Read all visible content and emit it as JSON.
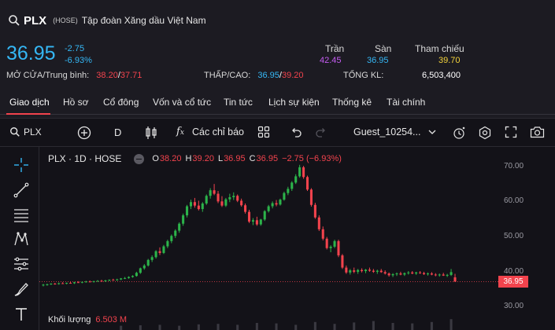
{
  "header": {
    "ticker": "PLX",
    "exchange": "(HOSE)",
    "company_name": "Tập đoàn Xăng dầu Việt Nam",
    "price": "36.95",
    "change": "-2.75",
    "change_pct": "-6.93%",
    "open_avg_label": "MỞ CỬA/Trung bình:",
    "open_value": "38.20",
    "avg_value": "37.71",
    "slash": "/",
    "lowhigh_label": "THẤP/CAO:",
    "low_value": "36.95",
    "high_value": "39.20",
    "volume_label": "TỔNG KL:",
    "volume_value": "6,503,400",
    "ceiling_label": "Trần",
    "ceiling_value": "42.45",
    "floor_label": "Sàn",
    "floor_value": "36.95",
    "reference_label": "Tham chiếu",
    "reference_value": "39.70"
  },
  "tabs": [
    {
      "label": "Giao dịch",
      "active": true
    },
    {
      "label": "Hồ sơ"
    },
    {
      "label": "Cổ đông"
    },
    {
      "label": "Vốn và cổ tức"
    },
    {
      "label": "Tin tức"
    },
    {
      "label": "Lịch sự kiện"
    },
    {
      "label": "Thống kê"
    },
    {
      "label": "Tài chính"
    }
  ],
  "toolbar": {
    "symbol": "PLX",
    "interval": "D",
    "indicators_label": "Các chỉ báo",
    "layout_name": "Guest_10254...",
    "icons": [
      "search-icon",
      "add-compare-icon",
      "candles-icon",
      "fx-icon",
      "templates-icon",
      "undo-icon",
      "redo-icon",
      "chevron-down-icon",
      "alert-icon",
      "settings-icon",
      "fullscreen-icon",
      "camera-icon"
    ]
  },
  "sidebar_icons": [
    "crosshair-icon",
    "trendline-icon",
    "fib-icon",
    "pattern-icon",
    "projection-icon",
    "brush-icon",
    "text-icon"
  ],
  "legend": {
    "title": "PLX · 1D · HOSE",
    "o_label": "O",
    "o_value": "38.20",
    "h_label": "H",
    "h_value": "39.20",
    "l_label": "L",
    "l_value": "36.95",
    "c_label": "C",
    "c_value": "36.95",
    "change": "−2.75 (−6.93%)"
  },
  "volume": {
    "label": "Khối lượng",
    "value": "6.503 M"
  },
  "price_axis": {
    "ticks": [
      "70.00",
      "60.00",
      "50.00",
      "40.00",
      "30.00"
    ],
    "last": "36.95"
  },
  "colors": {
    "up": "#2cb34a",
    "down": "#f2434d",
    "accent": "#35b7f5"
  },
  "chart_data": {
    "type": "candlestick",
    "ylim": [
      30,
      72
    ],
    "candles": [
      [
        36.0,
        36.3,
        35.6,
        36.1
      ],
      [
        36.1,
        36.4,
        35.8,
        36.2
      ],
      [
        36.2,
        36.5,
        36.0,
        36.4
      ],
      [
        36.4,
        36.6,
        36.1,
        36.3
      ],
      [
        36.3,
        36.7,
        36.1,
        36.5
      ],
      [
        36.5,
        36.8,
        36.3,
        36.4
      ],
      [
        36.4,
        36.7,
        36.2,
        36.6
      ],
      [
        36.6,
        36.9,
        36.4,
        36.5
      ],
      [
        36.5,
        36.9,
        36.3,
        36.8
      ],
      [
        36.8,
        37.1,
        36.6,
        36.7
      ],
      [
        36.7,
        37.0,
        36.5,
        36.9
      ],
      [
        36.9,
        37.2,
        36.7,
        37.0
      ],
      [
        37.0,
        37.3,
        36.8,
        36.9
      ],
      [
        36.9,
        37.2,
        36.7,
        37.1
      ],
      [
        37.1,
        37.4,
        36.9,
        37.2
      ],
      [
        37.2,
        37.5,
        37.0,
        37.1
      ],
      [
        37.1,
        37.5,
        36.9,
        37.3
      ],
      [
        37.3,
        37.6,
        37.1,
        37.5
      ],
      [
        37.5,
        37.8,
        37.3,
        37.4
      ],
      [
        37.4,
        37.8,
        37.2,
        37.6
      ],
      [
        37.6,
        38.0,
        37.4,
        37.9
      ],
      [
        37.9,
        38.3,
        37.7,
        38.0
      ],
      [
        38.0,
        38.5,
        37.8,
        38.3
      ],
      [
        38.3,
        38.8,
        38.1,
        38.6
      ],
      [
        38.6,
        39.8,
        38.4,
        39.5
      ],
      [
        39.5,
        41.0,
        39.2,
        40.8
      ],
      [
        40.8,
        42.0,
        40.4,
        41.6
      ],
      [
        41.6,
        43.5,
        41.3,
        43.2
      ],
      [
        43.2,
        44.5,
        42.6,
        44.0
      ],
      [
        44.0,
        46.0,
        43.6,
        45.7
      ],
      [
        45.7,
        46.8,
        44.6,
        45.2
      ],
      [
        45.2,
        47.5,
        44.9,
        47.1
      ],
      [
        47.1,
        49.0,
        46.6,
        48.6
      ],
      [
        48.6,
        50.5,
        48.0,
        50.1
      ],
      [
        50.1,
        52.0,
        49.5,
        51.6
      ],
      [
        51.6,
        54.0,
        51.0,
        53.6
      ],
      [
        53.6,
        56.5,
        53.0,
        56.0
      ],
      [
        56.0,
        59.0,
        55.4,
        58.6
      ],
      [
        58.6,
        60.5,
        57.8,
        59.8
      ],
      [
        59.8,
        61.0,
        58.2,
        58.8
      ],
      [
        58.8,
        60.2,
        57.4,
        57.8
      ],
      [
        57.8,
        59.8,
        57.0,
        59.4
      ],
      [
        59.4,
        62.0,
        59.0,
        61.6
      ],
      [
        61.6,
        63.8,
        60.8,
        63.2
      ],
      [
        63.2,
        65.0,
        61.8,
        62.2
      ],
      [
        62.2,
        63.0,
        59.5,
        60.0
      ],
      [
        60.0,
        61.5,
        58.4,
        58.8
      ],
      [
        58.8,
        61.0,
        58.4,
        60.6
      ],
      [
        60.6,
        62.2,
        59.8,
        61.2
      ],
      [
        61.2,
        62.6,
        60.4,
        61.6
      ],
      [
        61.6,
        62.0,
        59.8,
        60.2
      ],
      [
        60.2,
        60.8,
        58.5,
        58.9
      ],
      [
        58.9,
        59.4,
        56.5,
        57.0
      ],
      [
        57.0,
        57.6,
        53.8,
        54.2
      ],
      [
        54.2,
        55.2,
        53.2,
        54.6
      ],
      [
        54.6,
        55.6,
        53.0,
        53.4
      ],
      [
        53.4,
        55.0,
        53.0,
        54.8
      ],
      [
        54.8,
        57.5,
        54.4,
        57.2
      ],
      [
        57.2,
        59.0,
        56.8,
        58.6
      ],
      [
        58.6,
        60.0,
        58.0,
        59.5
      ],
      [
        59.5,
        60.4,
        58.6,
        59.1
      ],
      [
        59.1,
        60.8,
        58.8,
        60.5
      ],
      [
        60.5,
        62.8,
        60.2,
        62.4
      ],
      [
        62.4,
        64.2,
        61.8,
        63.6
      ],
      [
        63.6,
        65.8,
        63.0,
        65.4
      ],
      [
        65.4,
        67.8,
        65.0,
        67.2
      ],
      [
        67.2,
        70.5,
        66.8,
        69.8
      ],
      [
        69.8,
        70.2,
        66.5,
        67.0
      ],
      [
        67.0,
        67.4,
        63.0,
        63.4
      ],
      [
        63.4,
        63.8,
        58.5,
        59.0
      ],
      [
        59.0,
        59.6,
        55.0,
        55.4
      ],
      [
        55.4,
        56.0,
        51.5,
        52.0
      ],
      [
        52.0,
        52.8,
        48.8,
        49.3
      ],
      [
        49.3,
        49.8,
        46.2,
        46.6
      ],
      [
        46.6,
        47.4,
        45.4,
        47.0
      ],
      [
        47.0,
        49.0,
        46.6,
        48.6
      ],
      [
        48.6,
        49.0,
        44.0,
        44.5
      ],
      [
        44.5,
        44.9,
        40.6,
        41.0
      ],
      [
        41.0,
        41.6,
        39.2,
        39.6
      ],
      [
        39.6,
        40.6,
        39.0,
        40.2
      ],
      [
        40.2,
        41.0,
        39.4,
        39.8
      ],
      [
        39.8,
        40.6,
        39.2,
        40.3
      ],
      [
        40.3,
        40.8,
        39.6,
        40.0
      ],
      [
        40.0,
        40.6,
        39.4,
        40.4
      ],
      [
        40.4,
        41.0,
        39.8,
        40.1
      ],
      [
        40.1,
        40.6,
        39.5,
        39.8
      ],
      [
        39.8,
        40.4,
        39.2,
        40.1
      ],
      [
        40.1,
        40.6,
        39.5,
        39.7
      ],
      [
        39.7,
        40.2,
        39.0,
        39.3
      ],
      [
        39.3,
        39.6,
        38.4,
        38.8
      ],
      [
        38.8,
        39.4,
        38.3,
        39.1
      ],
      [
        39.1,
        39.6,
        38.6,
        39.3
      ],
      [
        39.3,
        39.8,
        38.8,
        39.0
      ],
      [
        39.0,
        39.6,
        38.6,
        39.4
      ],
      [
        39.4,
        40.0,
        39.0,
        39.6
      ],
      [
        39.6,
        40.0,
        39.1,
        39.3
      ],
      [
        39.3,
        39.8,
        38.9,
        39.6
      ],
      [
        39.6,
        40.0,
        39.2,
        39.4
      ],
      [
        39.4,
        39.8,
        38.9,
        39.1
      ],
      [
        39.1,
        39.6,
        38.7,
        39.3
      ],
      [
        39.3,
        39.7,
        38.8,
        39.0
      ],
      [
        39.0,
        39.4,
        38.5,
        38.8
      ],
      [
        38.8,
        39.3,
        38.4,
        39.0
      ],
      [
        39.0,
        39.5,
        38.6,
        38.7
      ],
      [
        38.7,
        39.2,
        38.3,
        38.9
      ],
      [
        38.9,
        40.6,
        38.6,
        39.7
      ],
      [
        38.2,
        39.2,
        36.95,
        36.95
      ]
    ]
  }
}
